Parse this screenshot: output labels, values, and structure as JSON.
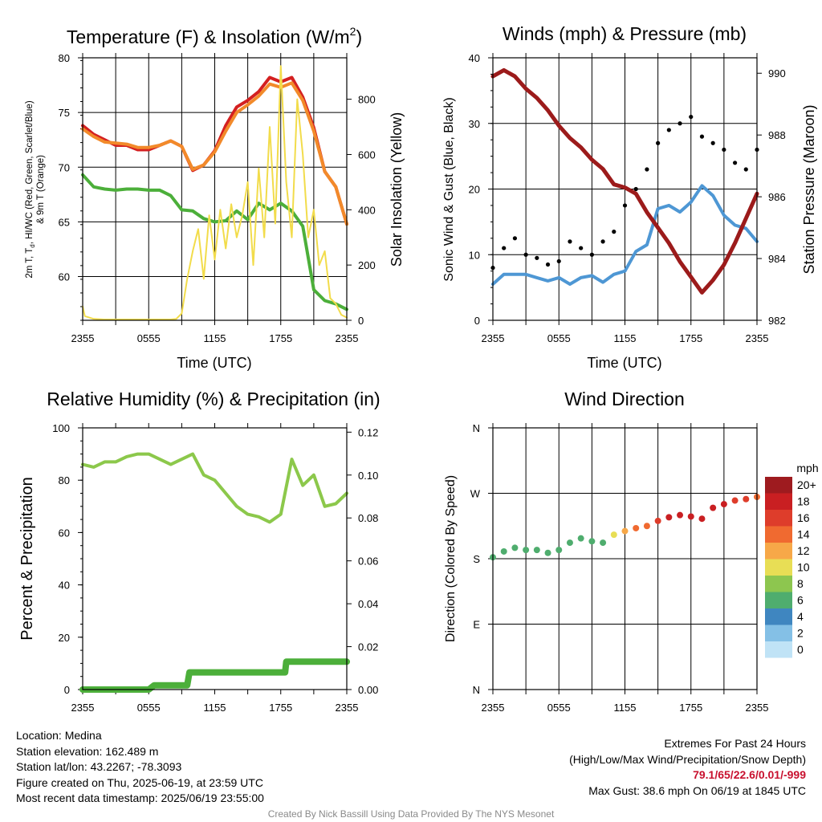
{
  "panels": {
    "temperature": {
      "title": "Temperature (F) & Insolation (W/m²)",
      "title_main": "Temperature (F) & Insolation (W/m",
      "title_sup": "2",
      "title_end": ")",
      "ylabel_left_line1": "2m T, T",
      "ylabel_left_sub": "d",
      "ylabel_left_line1_end": ", HI/WC (Red, Green, Scarlet/Blue)",
      "ylabel_left_line2": "& 9m T (Orange)",
      "ylabel_right": "Solar Insolation (Yellow)",
      "xlabel": "Time (UTC)"
    },
    "winds": {
      "title": "Winds (mph) & Pressure (mb)",
      "ylabel_left": "Sonic Wind & Gust (Blue, Black)",
      "ylabel_right": "Station Pressure (Maroon)",
      "xlabel": "Time (UTC)"
    },
    "humidity": {
      "title": "Relative Humidity (%) & Precipitation (in)",
      "ylabel_left": "Percent & Precipitation"
    },
    "direction": {
      "title": "Wind Direction",
      "ylabel_left": "Direction (Colored By Speed)",
      "legend_title": "mph",
      "legend_labels": [
        "20+",
        "18",
        "16",
        "14",
        "12",
        "10",
        "8",
        "6",
        "4",
        "2",
        "0"
      ],
      "legend_colors": [
        "#9e1b1f",
        "#c91f22",
        "#de3d2b",
        "#f06a30",
        "#f7a848",
        "#e8de55",
        "#8dc64f",
        "#4fad6e",
        "#3f86c0",
        "#84c0e6",
        "#c0e3f6"
      ]
    }
  },
  "chart_data": [
    {
      "type": "line",
      "title": "Temperature (F) & Insolation (W/m2)",
      "xlabel": "Time (UTC)",
      "ylabel": "2m T, Td, HI/WC (Red, Green, Scarlet/Blue) & 9m T (Orange)",
      "y2label": "Solar Insolation (Yellow)",
      "x_ticks": [
        "2355",
        "0555",
        "1155",
        "1755",
        "2355"
      ],
      "x_hours": [
        0,
        3,
        6,
        9,
        12,
        15,
        18,
        21,
        24
      ],
      "ylim": [
        56,
        80
      ],
      "y_ticks": [
        60,
        65,
        70,
        75,
        80
      ],
      "y2lim": [
        0,
        950
      ],
      "y2_ticks": [
        0,
        200,
        400,
        600,
        800
      ],
      "grid": true,
      "series": [
        {
          "name": "2m T",
          "color": "#d42020",
          "axis": "left",
          "x": [
            0,
            1,
            2,
            3,
            4,
            5,
            6,
            7,
            8,
            9,
            10,
            11,
            12,
            13,
            14,
            15,
            16,
            17,
            18,
            19,
            20,
            21,
            22,
            23,
            24
          ],
          "values": [
            73.8,
            73.0,
            72.5,
            72.0,
            72.0,
            71.6,
            71.6,
            72.0,
            72.4,
            71.9,
            69.7,
            70.2,
            71.5,
            73.8,
            75.5,
            76.1,
            76.9,
            78.2,
            77.8,
            78.2,
            76.4,
            73.6,
            69.6,
            68.2,
            64.8
          ]
        },
        {
          "name": "9m T",
          "color": "#f28a2a",
          "axis": "left",
          "x": [
            0,
            1,
            2,
            3,
            4,
            5,
            6,
            7,
            8,
            9,
            10,
            11,
            12,
            13,
            14,
            15,
            16,
            17,
            18,
            19,
            20,
            21,
            22,
            23,
            24
          ],
          "values": [
            73.5,
            72.8,
            72.3,
            72.2,
            72.1,
            71.8,
            71.8,
            72.0,
            72.4,
            71.9,
            69.8,
            70.2,
            71.4,
            73.3,
            75.0,
            75.7,
            76.5,
            77.6,
            77.3,
            77.7,
            76.1,
            73.3,
            69.6,
            68.2,
            64.8
          ]
        },
        {
          "name": "2m Td",
          "color": "#4caf3a",
          "axis": "left",
          "x": [
            0,
            1,
            2,
            3,
            4,
            5,
            6,
            7,
            8,
            9,
            10,
            11,
            12,
            13,
            14,
            15,
            16,
            17,
            18,
            19,
            20,
            21,
            22,
            23,
            24
          ],
          "values": [
            69.3,
            68.2,
            68.0,
            67.9,
            68.0,
            68.0,
            67.9,
            67.9,
            67.4,
            66.1,
            66.0,
            65.3,
            65.0,
            65.1,
            66.0,
            65.2,
            66.7,
            66.1,
            66.7,
            66.0,
            64.6,
            58.8,
            57.8,
            57.5,
            57.0
          ]
        },
        {
          "name": "Solar Insolation",
          "color": "#f2dc4b",
          "axis": "right",
          "x": [
            0,
            0.2,
            1,
            2,
            3,
            4,
            5,
            6,
            7,
            8,
            8.5,
            9,
            9.5,
            10,
            10.5,
            11,
            11.5,
            12,
            12.5,
            13,
            13.5,
            14,
            14.5,
            15,
            15.5,
            16,
            16.5,
            17,
            17.5,
            18,
            18.5,
            19,
            19.5,
            20,
            20.5,
            21,
            21.5,
            22,
            22.5,
            23,
            23.5,
            24
          ],
          "values": [
            50,
            15,
            5,
            3,
            3,
            3,
            3,
            3,
            3,
            3,
            5,
            25,
            150,
            250,
            330,
            150,
            380,
            220,
            400,
            260,
            420,
            300,
            380,
            500,
            200,
            550,
            300,
            700,
            350,
            920,
            500,
            300,
            800,
            600,
            300,
            400,
            200,
            250,
            80,
            60,
            20,
            10
          ]
        }
      ]
    },
    {
      "type": "line",
      "title": "Winds (mph) & Pressure (mb)",
      "xlabel": "Time (UTC)",
      "ylabel": "Sonic Wind & Gust (Blue, Black)",
      "y2label": "Station Pressure (Maroon)",
      "x_ticks": [
        "2355",
        "0555",
        "1155",
        "1755",
        "2355"
      ],
      "x_hours": [
        0,
        3,
        6,
        9,
        12,
        15,
        18,
        21,
        24
      ],
      "ylim": [
        0,
        40
      ],
      "y_ticks": [
        0,
        10,
        20,
        30,
        40
      ],
      "y2lim": [
        982,
        990.5
      ],
      "y2_ticks": [
        982,
        984,
        986,
        988,
        990
      ],
      "grid": true,
      "series": [
        {
          "name": "Sonic Wind",
          "color": "#4e97d4",
          "axis": "left",
          "x": [
            0,
            1,
            2,
            3,
            4,
            5,
            6,
            7,
            8,
            9,
            10,
            11,
            12,
            13,
            14,
            15,
            16,
            17,
            18,
            19,
            20,
            21,
            22,
            23,
            24
          ],
          "values": [
            5.5,
            7.0,
            7.0,
            7.0,
            6.5,
            6.0,
            6.5,
            5.5,
            6.5,
            6.8,
            5.8,
            7.0,
            7.5,
            10.5,
            11.5,
            17.0,
            17.5,
            16.5,
            18.0,
            20.5,
            19.0,
            16.0,
            14.5,
            14.0,
            12.0
          ]
        },
        {
          "name": "Gust",
          "color": "#000000",
          "axis": "left",
          "style": "points",
          "x": [
            0,
            1,
            2,
            3,
            4,
            5,
            6,
            7,
            8,
            9,
            10,
            11,
            12,
            13,
            14,
            15,
            16,
            17,
            18,
            19,
            20,
            21,
            22,
            23,
            24
          ],
          "values": [
            8,
            11,
            12.5,
            10,
            9.5,
            8.5,
            9,
            12,
            11,
            10,
            12,
            13.5,
            17.5,
            20,
            23,
            27,
            29,
            30,
            31,
            28,
            27,
            26,
            24,
            23,
            26
          ]
        },
        {
          "name": "Station Pressure",
          "color": "#9c1b1b",
          "axis": "right",
          "x": [
            0,
            1,
            2,
            3,
            4,
            5,
            6,
            7,
            8,
            9,
            10,
            11,
            12,
            13,
            14,
            15,
            16,
            17,
            18,
            19,
            20,
            21,
            22,
            23,
            24
          ],
          "values": [
            989.9,
            990.1,
            989.9,
            989.5,
            989.2,
            988.8,
            988.3,
            987.9,
            987.6,
            987.2,
            986.9,
            986.4,
            986.3,
            986.1,
            985.5,
            985.0,
            984.5,
            983.9,
            983.4,
            982.9,
            983.3,
            983.8,
            984.5,
            985.3,
            986.1
          ]
        }
      ]
    },
    {
      "type": "line",
      "title": "Relative Humidity (%) & Precipitation (in)",
      "ylabel": "Percent & Precipitation",
      "x_ticks": [
        "2355",
        "0555",
        "1155",
        "1755",
        "2355"
      ],
      "x_hours": [
        0,
        3,
        6,
        9,
        12,
        15,
        18,
        21,
        24
      ],
      "ylim": [
        0,
        100
      ],
      "y_ticks": [
        0,
        20,
        40,
        60,
        80,
        100
      ],
      "y2lim": [
        0,
        0.122
      ],
      "y2_ticks": [
        "0.00",
        "0.02",
        "0.04",
        "0.06",
        "0.08",
        "0.10",
        "0.12"
      ],
      "grid": false,
      "series": [
        {
          "name": "Relative Humidity",
          "color": "#8cc84b",
          "axis": "left",
          "x": [
            0,
            1,
            2,
            3,
            4,
            5,
            6,
            7,
            8,
            9,
            10,
            11,
            12,
            13,
            14,
            15,
            16,
            17,
            18,
            19,
            20,
            21,
            22,
            23,
            24
          ],
          "values": [
            86,
            85,
            87,
            87,
            89,
            90,
            90,
            88,
            86,
            88,
            90,
            82,
            80,
            75,
            70,
            67,
            66,
            64,
            67,
            88,
            78,
            82,
            70,
            71,
            75
          ]
        },
        {
          "name": "Precipitation",
          "color": "#4caf3a",
          "axis": "right",
          "style": "step",
          "x": [
            0,
            6,
            6.5,
            9.5,
            9.7,
            18.4,
            18.5,
            24
          ],
          "values": [
            0,
            0,
            0.002,
            0.002,
            0.008,
            0.008,
            0.013,
            0.013
          ]
        }
      ]
    },
    {
      "type": "scatter",
      "title": "Wind Direction",
      "ylabel": "Direction (Colored By Speed)",
      "x_ticks": [
        "2355",
        "0555",
        "1155",
        "1755",
        "2355"
      ],
      "x_hours": [
        0,
        3,
        6,
        9,
        12,
        15,
        18,
        21,
        24
      ],
      "ylim": [
        0,
        360
      ],
      "y_ticks": [
        "N",
        "E",
        "S",
        "W",
        "N"
      ],
      "grid": true,
      "colorbar": {
        "title": "mph",
        "labels": [
          "0",
          "2",
          "4",
          "6",
          "8",
          "10",
          "12",
          "14",
          "16",
          "18",
          "20+"
        ]
      },
      "series": [
        {
          "name": "Wind Direction",
          "style": "points",
          "x": [
            0,
            1,
            2,
            3,
            4,
            5,
            6,
            7,
            8,
            9,
            10,
            11,
            12,
            13,
            14,
            15,
            16,
            17,
            18,
            19,
            20,
            21,
            22,
            23,
            24
          ],
          "values": [
            182,
            190,
            195,
            192,
            192,
            188,
            192,
            202,
            208,
            204,
            202,
            213,
            218,
            222,
            225,
            232,
            237,
            240,
            238,
            235,
            250,
            255,
            260,
            262,
            265
          ],
          "speed": [
            5,
            6,
            6,
            6,
            6,
            5,
            6,
            5,
            6,
            6,
            6,
            9,
            12,
            13,
            14,
            16,
            17,
            18,
            18,
            17,
            17,
            17,
            16,
            15,
            14
          ]
        }
      ]
    }
  ],
  "info": {
    "location": "Location: Medina",
    "elevation": "Station elevation: 162.489 m",
    "latlon": "Station lat/lon: 43.2267; -78.3093",
    "created": "Figure created on Thu, 2025-06-19, at 23:59 UTC",
    "recent": "Most recent data timestamp: 2025/06/19 23:55:00"
  },
  "extremes": {
    "heading": "Extremes For Past 24 Hours",
    "fields": "(High/Low/Max Wind/Precipitation/Snow Depth)",
    "values": "79.1/65/22.6/0.01/-999",
    "gust": "Max Gust: 38.6 mph On 06/19 at 1845 UTC"
  },
  "credit": "Created By Nick Bassill Using Data Provided By The NYS Mesonet"
}
